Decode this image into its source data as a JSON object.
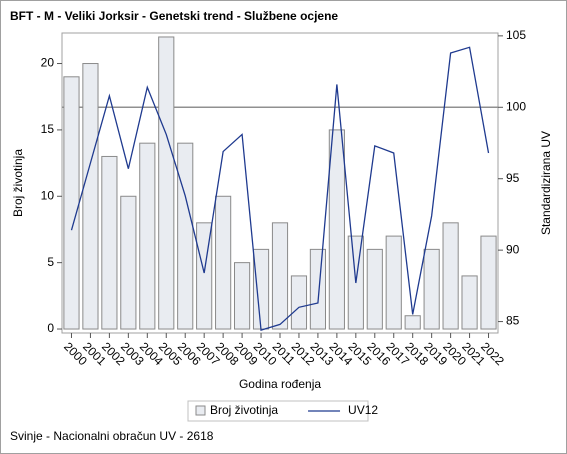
{
  "chart_data": {
    "type": "combo",
    "title": "BFT - M - Veliki Jorksir - Genetski trend - Službene ocjene",
    "xlabel": "Godina rođenja",
    "ylabel": "Broj životinja",
    "y2label": "Standardizirana UV",
    "footnote": "Svinje - Nacionalni obračun UV - 2618",
    "categories": [
      "2000",
      "2001",
      "2002",
      "2003",
      "2004",
      "2005",
      "2006",
      "2007",
      "2008",
      "2009",
      "2010",
      "2011",
      "2012",
      "2013",
      "2014",
      "2015",
      "2016",
      "2017",
      "2018",
      "2019",
      "2020",
      "2021",
      "2022"
    ],
    "series": [
      {
        "name": "Broj životinja",
        "type": "bar",
        "color": "#e9ecf1",
        "edge": "#8a8a8a",
        "values": [
          19,
          20,
          13,
          10,
          14,
          22,
          14,
          8,
          10,
          5,
          6,
          8,
          4,
          6,
          15,
          7,
          6,
          7,
          1,
          6,
          8,
          4,
          7
        ]
      },
      {
        "name": "UV12",
        "type": "line",
        "axis": "y2",
        "color": "#1f3a8f",
        "values": [
          91.4,
          96.1,
          100.8,
          95.7,
          101.4,
          98.1,
          93.8,
          88.4,
          96.9,
          98.1,
          84.4,
          84.8,
          86.0,
          86.3,
          101.6,
          87.7,
          97.3,
          96.8,
          85.5,
          92.4,
          103.8,
          104.2,
          96.8
        ]
      }
    ],
    "ylim": [
      -0.3,
      22.3
    ],
    "yticks": [
      0,
      5,
      10,
      15,
      20
    ],
    "y2lim": [
      84.2,
      105.2
    ],
    "y2ticks": [
      85,
      90,
      95,
      100,
      105
    ],
    "reference_line": {
      "value": 100,
      "axis": "y2"
    },
    "legend": "bottom"
  }
}
